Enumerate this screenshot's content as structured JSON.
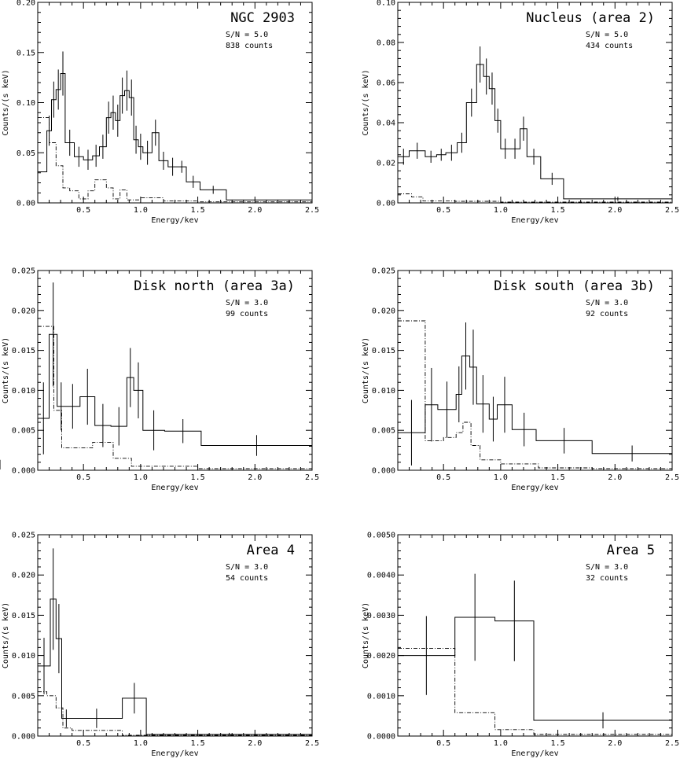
{
  "chart_data": [
    {
      "type": "histogram",
      "title": "NGC 2903",
      "info": [
        "S/N = 5.0",
        "838 counts"
      ],
      "xlabel": "Energy/kev",
      "ylabel": "Counts/(s keV)",
      "xlim": [
        0.1,
        2.5
      ],
      "ylim": [
        0,
        0.2
      ],
      "xticks": [
        0.5,
        1.0,
        1.5,
        2.0,
        2.5
      ],
      "xtick_labels": [
        "0.5",
        "1.0",
        "1.5",
        "2.0",
        "2.5"
      ],
      "yticks": [
        0.0,
        0.05,
        0.1,
        0.15,
        0.2
      ],
      "ytick_labels": [
        "0.00",
        "0.05",
        "0.10",
        "0.15",
        "0.20"
      ],
      "series": [
        {
          "style": "solid",
          "edges": [
            0.1,
            0.18,
            0.22,
            0.26,
            0.3,
            0.34,
            0.42,
            0.5,
            0.58,
            0.64,
            0.7,
            0.74,
            0.78,
            0.82,
            0.86,
            0.9,
            0.94,
            0.98,
            1.02,
            1.1,
            1.16,
            1.24,
            1.32,
            1.4,
            1.52,
            1.75,
            2.5
          ],
          "values": [
            0.031,
            0.072,
            0.103,
            0.113,
            0.129,
            0.06,
            0.046,
            0.043,
            0.047,
            0.056,
            0.085,
            0.09,
            0.082,
            0.107,
            0.112,
            0.105,
            0.063,
            0.056,
            0.05,
            0.07,
            0.042,
            0.036,
            0.036,
            0.021,
            0.013,
            0.003
          ],
          "errors": [
            0,
            0.015,
            0.018,
            0.02,
            0.022,
            0.013,
            0.01,
            0.01,
            0.011,
            0.012,
            0.016,
            0.017,
            0.016,
            0.018,
            0.02,
            0.018,
            0.014,
            0.013,
            0.012,
            0.013,
            0.009,
            0.009,
            0.006,
            0.006,
            0.004,
            0
          ]
        },
        {
          "style": "dashdot",
          "edges": [
            0.1,
            0.2,
            0.26,
            0.32,
            0.38,
            0.46,
            0.54,
            0.6,
            0.7,
            0.76,
            0.82,
            0.88,
            1.0,
            1.2,
            1.5,
            2.5
          ],
          "values": [
            0.085,
            0.06,
            0.037,
            0.015,
            0.012,
            0.004,
            0.012,
            0.023,
            0.015,
            0.004,
            0.013,
            0.003,
            0.005,
            0.002,
            0.001
          ]
        }
      ]
    },
    {
      "type": "histogram",
      "title": "Nucleus (area 2)",
      "info": [
        "S/N = 5.0",
        "434 counts"
      ],
      "xlabel": "Energy/kev",
      "ylabel": "Counts/(s keV)",
      "xlim": [
        0.1,
        2.5
      ],
      "ylim": [
        0,
        0.1
      ],
      "xticks": [
        0.5,
        1.0,
        1.5,
        2.0,
        2.5
      ],
      "xtick_labels": [
        "0.5",
        "1.0",
        "1.5",
        "2.0",
        "2.5"
      ],
      "yticks": [
        0.0,
        0.02,
        0.04,
        0.06,
        0.08,
        0.1
      ],
      "ytick_labels": [
        "0.00",
        "0.02",
        "0.04",
        "0.06",
        "0.08",
        "0.10"
      ],
      "series": [
        {
          "style": "solid",
          "edges": [
            0.1,
            0.2,
            0.34,
            0.44,
            0.52,
            0.62,
            0.7,
            0.79,
            0.85,
            0.9,
            0.95,
            1.0,
            1.08,
            1.17,
            1.23,
            1.35,
            1.55,
            2.5
          ],
          "values": [
            0.023,
            0.026,
            0.023,
            0.024,
            0.025,
            0.03,
            0.05,
            0.069,
            0.063,
            0.057,
            0.041,
            0.027,
            0.027,
            0.037,
            0.023,
            0.012,
            0.002
          ],
          "errors": [
            0.004,
            0.004,
            0.003,
            0.003,
            0.004,
            0.005,
            0.007,
            0.009,
            0.009,
            0.008,
            0.006,
            0.005,
            0.005,
            0.006,
            0.004,
            0.003,
            0.001
          ]
        },
        {
          "style": "dashdot",
          "edges": [
            0.1,
            0.22,
            0.32,
            0.6,
            1.0,
            2.5
          ],
          "values": [
            0.0045,
            0.003,
            0.001,
            0.0008,
            0.0004
          ]
        }
      ]
    },
    {
      "type": "histogram",
      "title": "Disk north (area 3a)",
      "info": [
        "S/N = 3.0",
        "99 counts"
      ],
      "xlabel": "Energy/kev",
      "ylabel": "Counts/(s keV)",
      "xlim": [
        0.1,
        2.5
      ],
      "ylim": [
        0,
        0.025
      ],
      "xticks": [
        0.5,
        1.0,
        1.5,
        2.0,
        2.5
      ],
      "xtick_labels": [
        "0.5",
        "1.0",
        "1.5",
        "2.0",
        "2.5"
      ],
      "yticks": [
        0.0,
        0.005,
        0.01,
        0.015,
        0.02,
        0.025
      ],
      "ytick_labels": [
        "0.000",
        "0.005",
        "0.010",
        "0.015",
        "0.020",
        "0.025"
      ],
      "series": [
        {
          "style": "solid",
          "edges": [
            0.1,
            0.2,
            0.27,
            0.34,
            0.47,
            0.6,
            0.74,
            0.88,
            0.94,
            1.02,
            1.21,
            1.53,
            2.5
          ],
          "values": [
            0.0065,
            0.017,
            0.008,
            0.008,
            0.0092,
            0.0056,
            0.0055,
            0.0116,
            0.01,
            0.005,
            0.0049,
            0.0031,
            0.0007
          ],
          "errors": [
            0.0045,
            0.0065,
            0.003,
            0.0028,
            0.0035,
            0.0027,
            0.0024,
            0.0037,
            0.0035,
            0.0025,
            0.0015,
            0.0013,
            0.0006
          ]
        },
        {
          "style": "dashdot",
          "edges": [
            0.1,
            0.24,
            0.31,
            0.58,
            0.76,
            0.92,
            1.5,
            2.5
          ],
          "values": [
            0.018,
            0.0075,
            0.0028,
            0.0035,
            0.0015,
            0.0005,
            0.0002
          ]
        }
      ]
    },
    {
      "type": "histogram",
      "title": "Disk south (area 3b)",
      "info": [
        "S/N = 3.0",
        "92 counts"
      ],
      "xlabel": "Energy/kev",
      "ylabel": "Counts/(s keV)",
      "xlim": [
        0.1,
        2.5
      ],
      "ylim": [
        0,
        0.025
      ],
      "xticks": [
        0.5,
        1.0,
        1.5,
        2.0,
        2.5
      ],
      "xtick_labels": [
        "0.5",
        "1.0",
        "1.5",
        "2.0",
        "2.5"
      ],
      "yticks": [
        0.0,
        0.005,
        0.01,
        0.015,
        0.02,
        0.025
      ],
      "ytick_labels": [
        "0.000",
        "0.005",
        "0.010",
        "0.015",
        "0.020",
        "0.025"
      ],
      "series": [
        {
          "style": "solid",
          "edges": [
            0.1,
            0.34,
            0.45,
            0.61,
            0.66,
            0.73,
            0.79,
            0.9,
            0.97,
            1.1,
            1.31,
            1.8,
            2.5
          ],
          "values": [
            0.0047,
            0.0082,
            0.0076,
            0.0095,
            0.0143,
            0.0129,
            0.0083,
            0.0064,
            0.0082,
            0.0051,
            0.0037,
            0.0021,
            0.0005
          ],
          "errors": [
            0.0041,
            0.0046,
            0.0035,
            0.0035,
            0.0042,
            0.0047,
            0.0036,
            0.0028,
            0.0035,
            0.0021,
            0.0016,
            0.001,
            0.0004
          ]
        },
        {
          "style": "dashdot",
          "edges": [
            0.1,
            0.34,
            0.5,
            0.61,
            0.67,
            0.74,
            0.82,
            1.0,
            1.33,
            1.8,
            2.5
          ],
          "values": [
            0.0187,
            0.0037,
            0.0041,
            0.0047,
            0.006,
            0.0031,
            0.0013,
            0.0008,
            0.0003,
            0.0002
          ]
        }
      ]
    },
    {
      "type": "histogram",
      "title": "Area 4",
      "info": [
        "S/N = 3.0",
        "54 counts"
      ],
      "xlabel": "Energy/kev",
      "ylabel": "Counts/(s keV)",
      "xlim": [
        0.1,
        2.5
      ],
      "ylim": [
        0,
        0.025
      ],
      "xticks": [
        0.5,
        1.0,
        1.5,
        2.0,
        2.5
      ],
      "xtick_labels": [
        "0.5",
        "1.0",
        "1.5",
        "2.0",
        "2.5"
      ],
      "yticks": [
        0.0,
        0.005,
        0.01,
        0.015,
        0.02,
        0.025
      ],
      "ytick_labels": [
        "0.000",
        "0.005",
        "0.010",
        "0.015",
        "0.020",
        "0.025"
      ],
      "series": [
        {
          "style": "solid",
          "edges": [
            0.1,
            0.21,
            0.26,
            0.31,
            0.39,
            0.84,
            1.05,
            2.5
          ],
          "values": [
            0.0087,
            0.017,
            0.0121,
            0.0022,
            0.0022,
            0.0047,
            0.0002
          ],
          "errors": [
            0.0035,
            0.0063,
            0.0043,
            0.0011,
            0.0012,
            0.0019,
            0.0002
          ]
        },
        {
          "style": "dashdot",
          "edges": [
            0.1,
            0.18,
            0.26,
            0.32,
            0.4,
            0.84,
            1.05,
            2.5
          ],
          "values": [
            0.0055,
            0.005,
            0.0035,
            0.001,
            0.0007,
            0.0001,
            0.0001
          ]
        }
      ]
    },
    {
      "type": "histogram",
      "title": "Area 5",
      "info": [
        "S/N = 3.0",
        "32 counts"
      ],
      "xlabel": "Energy/kev",
      "ylabel": "Counts/(s keV)",
      "xlim": [
        0.1,
        2.5
      ],
      "ylim": [
        0,
        0.005
      ],
      "xticks": [
        0.5,
        1.0,
        1.5,
        2.0,
        2.5
      ],
      "xtick_labels": [
        "0.5",
        "1.0",
        "1.5",
        "2.0",
        "2.5"
      ],
      "yticks": [
        0.0,
        0.001,
        0.002,
        0.003,
        0.004,
        0.005
      ],
      "ytick_labels": [
        "0.0000",
        "0.0010",
        "0.0020",
        "0.0030",
        "0.0040",
        "0.0050"
      ],
      "series": [
        {
          "style": "solid",
          "edges": [
            0.1,
            0.6,
            0.95,
            1.29,
            2.5
          ],
          "values": [
            0.002,
            0.00295,
            0.00286,
            0.00039
          ],
          "errors": [
            0.00098,
            0.00108,
            0.001,
            0.0002
          ]
        },
        {
          "style": "dashdot",
          "edges": [
            0.1,
            0.6,
            0.95,
            1.29,
            2.5
          ],
          "values": [
            0.00218,
            0.00058,
            0.00016,
            4e-05
          ]
        }
      ]
    }
  ]
}
